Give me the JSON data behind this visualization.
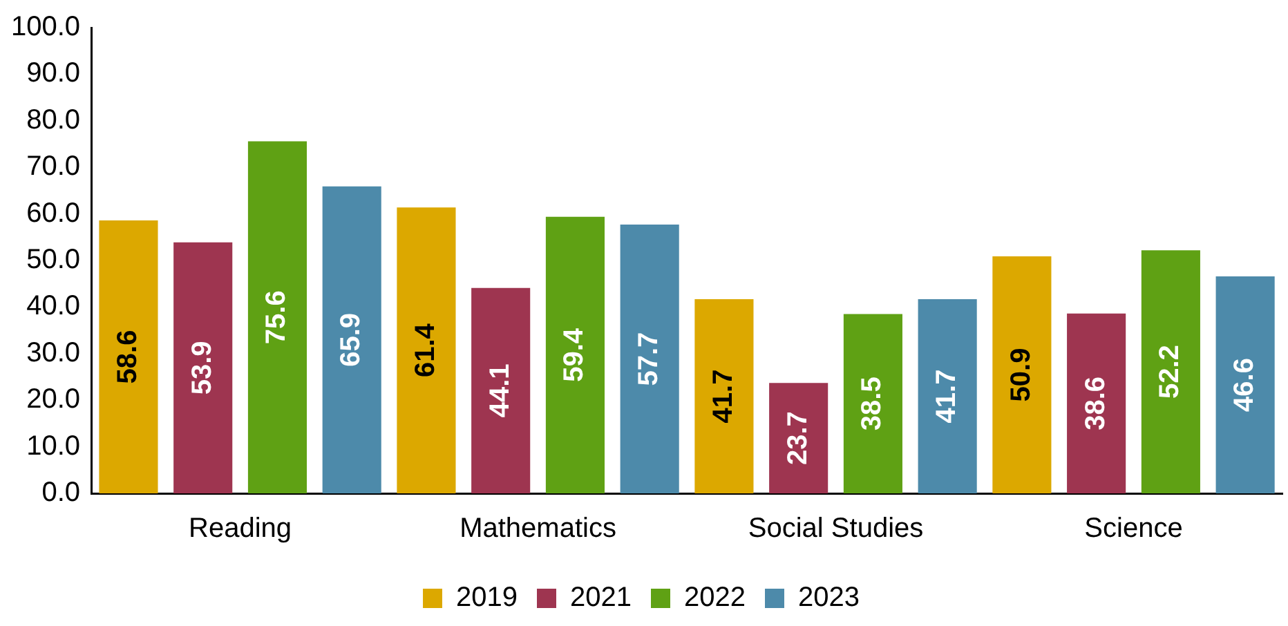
{
  "chart_data": {
    "type": "bar",
    "categories": [
      "Reading",
      "Mathematics",
      "Social Studies",
      "Science"
    ],
    "series": [
      {
        "name": "2019",
        "color": "#dca800",
        "values": [
          58.6,
          61.4,
          41.7,
          50.9
        ]
      },
      {
        "name": "2021",
        "color": "#9e3550",
        "values": [
          53.9,
          44.1,
          23.7,
          38.6
        ]
      },
      {
        "name": "2022",
        "color": "#5fa114",
        "values": [
          75.6,
          59.4,
          38.5,
          52.2
        ]
      },
      {
        "name": "2023",
        "color": "#4d8aaa",
        "values": [
          65.9,
          57.7,
          41.7,
          46.6
        ]
      }
    ],
    "ylim": [
      0,
      100
    ],
    "yticks": [
      {
        "value": 0,
        "label": "0.0"
      },
      {
        "value": 10,
        "label": "10.0"
      },
      {
        "value": 20,
        "label": "20.0"
      },
      {
        "value": 30,
        "label": "30.0"
      },
      {
        "value": 40,
        "label": "40.0"
      },
      {
        "value": 50,
        "label": "50.0"
      },
      {
        "value": 60,
        "label": "60.0"
      },
      {
        "value": 70,
        "label": "70.0"
      },
      {
        "value": 80,
        "label": "80.0"
      },
      {
        "value": 90,
        "label": "90.0"
      },
      {
        "value": 100,
        "label": "100.0"
      }
    ],
    "grid": false,
    "legend": "bottom",
    "data_labels": true
  }
}
